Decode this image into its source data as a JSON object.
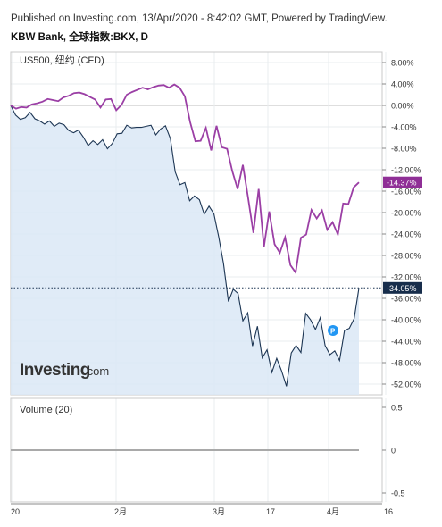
{
  "header": {
    "published": "Published on Investing.com, 13/Apr/2020 - 8:42:02 GMT, Powered by TradingView.",
    "symbol": "KBW Bank, 全球指数:BKX, D"
  },
  "legend": {
    "overlay_series": "US500, 纽约 (CFD)",
    "volume": "Volume (20)"
  },
  "logo": {
    "brand": "Investing",
    "suffix": ".com"
  },
  "colors": {
    "us500": "#9b3fa5",
    "bkx": "#1c3553",
    "area_fill": "#dbe7f6",
    "us500_tag": "#8f2f96",
    "bkx_tag": "#172d4b",
    "grid": "#e9ecef",
    "zero_line": "#bdbdbd",
    "volume_line": "#a9a9a9"
  },
  "chart_data": [
    {
      "type": "line",
      "title": "",
      "x_tick_labels": [
        "20",
        "2月",
        "3月",
        "17",
        "4月",
        "16"
      ],
      "ylim": [
        -54,
        10
      ],
      "y_ticks": [
        8,
        4,
        0,
        -4,
        -8,
        -12,
        -16,
        -20,
        -24,
        -28,
        -32,
        -36,
        -40,
        -44,
        -48,
        -52
      ],
      "y_tick_labels": [
        "8.00%",
        "4.00%",
        "0.00%",
        "-4.00%",
        "-8.00%",
        "-12.00%",
        "-16.00%",
        "-20.00%",
        "-24.00%",
        "-28.00%",
        "-32.00%",
        "-36.00%",
        "-40.00%",
        "-44.00%",
        "-48.00%",
        "-52.00%"
      ],
      "grid": true,
      "series": [
        {
          "name": "US500, 纽约 (CFD)",
          "last_label": "-14.37%",
          "values": [
            0,
            -0.6,
            -0.3,
            -0.4,
            0.2,
            0.4,
            0.7,
            1.2,
            1.0,
            0.8,
            1.5,
            1.8,
            2.3,
            2.4,
            2.1,
            1.6,
            1.1,
            -0.4,
            1.1,
            1.2,
            -0.9,
            0.1,
            2.0,
            2.5,
            2.9,
            3.3,
            3.0,
            3.4,
            3.7,
            3.8,
            3.3,
            3.9,
            3.3,
            1.7,
            -3.1,
            -6.7,
            -6.6,
            -4.2,
            -8.4,
            -3.8,
            -7.8,
            -8.1,
            -12.3,
            -15.6,
            -11.1,
            -17.3,
            -23.8,
            -15.6,
            -26.4,
            -19.8,
            -25.9,
            -27.5,
            -24.6,
            -29.8,
            -31.2,
            -24.7,
            -24.1,
            -19.5,
            -21.1,
            -19.6,
            -23.2,
            -21.8,
            -24.1,
            -18.3,
            -18.4,
            -15.3,
            -14.37
          ]
        },
        {
          "name": "KBW Bank, 全球指数:BKX",
          "last_label": "-34.05%",
          "values": [
            0,
            -1.8,
            -2.6,
            -2.3,
            -1.3,
            -2.5,
            -2.9,
            -3.5,
            -2.9,
            -3.9,
            -3.3,
            -3.6,
            -4.7,
            -5.1,
            -4.6,
            -5.9,
            -7.5,
            -6.6,
            -7.3,
            -6.4,
            -8.1,
            -7.1,
            -5.3,
            -5.2,
            -3.7,
            -4.2,
            -4.1,
            -4.1,
            -3.9,
            -3.7,
            -5.5,
            -4.4,
            -3.8,
            -6.2,
            -12.4,
            -14.8,
            -14.4,
            -17.8,
            -16.9,
            -17.6,
            -20.3,
            -18.8,
            -20.2,
            -24.5,
            -29.5,
            -36.6,
            -34.3,
            -35.1,
            -40.2,
            -38.7,
            -44.9,
            -41.2,
            -47.1,
            -45.6,
            -49.8,
            -47.2,
            -49.5,
            -52.4,
            -46.2,
            -44.8,
            -46.1,
            -38.8,
            -40.0,
            -41.8,
            -39.6,
            -44.8,
            -46.5,
            -45.8,
            -47.6,
            -42.0,
            -41.6,
            -39.8,
            -34.05
          ]
        }
      ]
    },
    {
      "type": "line",
      "title": "",
      "ylim": [
        -0.5,
        0.5
      ],
      "y_ticks": [
        0.5,
        0,
        -0.5
      ],
      "y_tick_labels": [
        "0.5",
        "0",
        "-0.5"
      ],
      "series": [
        {
          "name": "Volume (20)",
          "values": [
            0,
            0
          ]
        }
      ]
    }
  ]
}
